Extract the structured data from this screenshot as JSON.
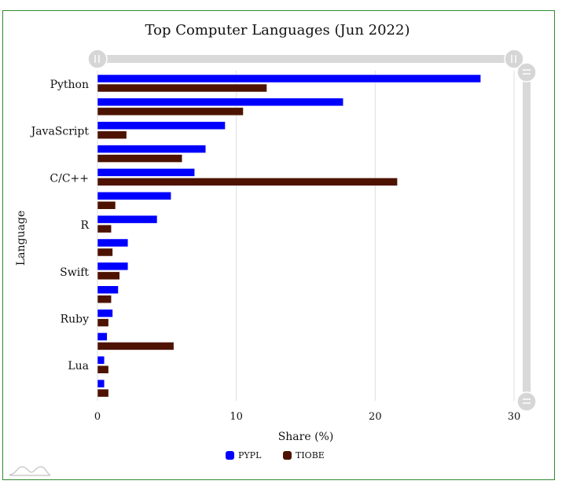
{
  "chart_data": {
    "type": "bar",
    "orientation": "horizontal",
    "title": "Top Computer Languages (Jun 2022)",
    "xlabel": "Share (%)",
    "ylabel": "Language",
    "xlim": [
      0,
      30
    ],
    "xticks": [
      0,
      10,
      20,
      30
    ],
    "grid": true,
    "legend_position": "bottom",
    "categories": [
      "Python",
      "",
      "JavaScript",
      "",
      "C/C++",
      "",
      "R",
      "",
      "Swift",
      "",
      "Ruby",
      "",
      "Lua",
      ""
    ],
    "series": [
      {
        "name": "PYPL",
        "color": "#0000ff",
        "values": [
          27.6,
          17.7,
          9.2,
          7.8,
          7.0,
          5.3,
          4.3,
          2.2,
          2.2,
          1.5,
          1.1,
          0.7,
          0.5,
          0.5
        ]
      },
      {
        "name": "TIOBE",
        "color": "#4d1300",
        "values": [
          12.2,
          10.5,
          2.1,
          6.1,
          21.6,
          1.3,
          1.0,
          1.1,
          1.6,
          1.0,
          0.8,
          5.5,
          0.8,
          0.8
        ]
      }
    ]
  }
}
